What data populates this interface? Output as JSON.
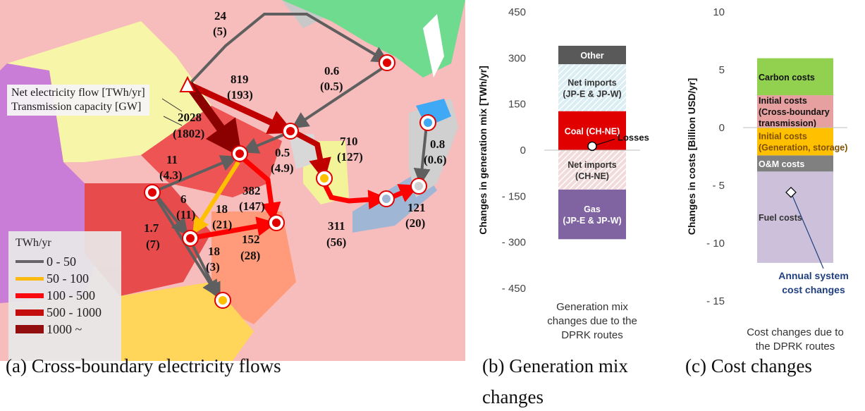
{
  "map": {
    "legend_title": "TWh/yr",
    "legend_items": [
      {
        "label": "0 - 50",
        "color": "#5f5f5f"
      },
      {
        "label": "50 - 100",
        "color": "#ffc000"
      },
      {
        "label": "100 - 500",
        "color": "#ff0000"
      },
      {
        "label": "500 - 1000",
        "color": "#c00000"
      },
      {
        "label": "1000 ~",
        "color": "#8b0000"
      }
    ],
    "note_line1": "Net electricity flow [TWh/yr]",
    "note_line2": "Transmission capacity [GW]",
    "flows": [
      {
        "flow": "24",
        "capacity": "(5)"
      },
      {
        "flow": "819",
        "capacity": "(193)"
      },
      {
        "flow": "0.6",
        "capacity": "(0.5)"
      },
      {
        "flow": "2028",
        "capacity": "(1802)"
      },
      {
        "flow": "710",
        "capacity": "(127)"
      },
      {
        "flow": "0.8",
        "capacity": "(0.6)"
      },
      {
        "flow": "11",
        "capacity": "(4.3)"
      },
      {
        "flow": "0.5",
        "capacity": "(4.9)"
      },
      {
        "flow": "6",
        "capacity": "(11)"
      },
      {
        "flow": "382",
        "capacity": "(147)"
      },
      {
        "flow": "18",
        "capacity": "(21)"
      },
      {
        "flow": "1.7",
        "capacity": "(7)"
      },
      {
        "flow": "152",
        "capacity": "(28)"
      },
      {
        "flow": "18",
        "capacity": "(3)"
      },
      {
        "flow": "311",
        "capacity": "(56)"
      },
      {
        "flow": "121",
        "capacity": "(20)"
      }
    ]
  },
  "captions": {
    "a": "(a) Cross-boundary electricity flows",
    "b_line1": "(b) Generation mix",
    "b_line2": "changes",
    "c": "(c) Cost changes"
  },
  "chart_data": [
    {
      "type": "bar",
      "stacked": true,
      "ylabel": "Changes in generation mix [TWh/yr]",
      "ylim": [
        -450,
        450
      ],
      "yticks": [
        "450",
        "300",
        "150",
        "0",
        "- 150",
        "- 300",
        "- 450"
      ],
      "ytick_values": [
        450,
        300,
        150,
        0,
        -150,
        -300,
        -450
      ],
      "category": "Generation mix changes due to the DPRK routes",
      "category_lines": [
        "Generation mix",
        "changes due to the",
        "DPRK routes"
      ],
      "segments": [
        {
          "name": "Gas (JP-E & JP-W)",
          "lines": [
            "Gas",
            "(JP-E & JP-W)"
          ],
          "from": -290,
          "to": -128,
          "color": "#8064a2",
          "text_color": "#ffffff"
        },
        {
          "name": "Net imports (CH-NE)",
          "lines": [
            "Net imports",
            "(CH-NE)"
          ],
          "from": -128,
          "to": 0,
          "color": "#f2dcdb",
          "hatch": true,
          "text_color": "#333333"
        },
        {
          "name": "Coal (CH-NE)",
          "lines": [
            "Coal (CH-NE)"
          ],
          "from": 0,
          "to": 127,
          "color": "#e00000",
          "text_color": "#ffffff"
        },
        {
          "name": "Net imports (JP-E & JP-W)",
          "lines": [
            "Net imports",
            "(JP-E & JP-W)"
          ],
          "from": 127,
          "to": 280,
          "color": "#daeef3",
          "hatch": true,
          "text_color": "#333333"
        },
        {
          "name": "Other",
          "lines": [
            "Other"
          ],
          "from": 280,
          "to": 340,
          "color": "#595959",
          "text_color": "#ffffff"
        }
      ],
      "marker": {
        "name": "Losses",
        "value": 13
      }
    },
    {
      "type": "bar",
      "stacked": true,
      "ylabel": "Changes in costs [Billion USD/yr]",
      "ylim": [
        -15,
        10
      ],
      "yticks": [
        "10",
        "5",
        "0",
        "- 5",
        "- 10",
        "- 15"
      ],
      "ytick_values": [
        10,
        5,
        0,
        -5,
        -10,
        -15
      ],
      "category": "Cost changes due to the DPRK routes",
      "category_lines": [
        "Cost changes due to",
        "the DPRK routes"
      ],
      "segments": [
        {
          "name": "Fuel costs",
          "lines": [
            "Fuel costs"
          ],
          "from": -11.7,
          "to": -3.8,
          "color": "#ccc0da",
          "text_color": "#333333"
        },
        {
          "name": "O&M costs",
          "lines": [
            "O&M costs"
          ],
          "from": -3.8,
          "to": -2.4,
          "color": "#808080",
          "text_color": "#ffffff"
        },
        {
          "name": "Initial costs (Generation, storage)",
          "lines": [
            "Initial costs",
            "(Generation, storage)"
          ],
          "from": -2.4,
          "to": 0,
          "color": "#ffc000",
          "text_color": "#7f4f00"
        },
        {
          "name": "Initial costs (Cross-boundary transmission)",
          "lines": [
            "Initial costs",
            "(Cross-boundary",
            "transmission)"
          ],
          "from": 0,
          "to": 2.8,
          "color": "#e6a0a0",
          "text_color": "#111111"
        },
        {
          "name": "Carbon costs",
          "lines": [
            "Carbon costs"
          ],
          "from": 2.8,
          "to": 6,
          "color": "#92d050",
          "text_color": "#111111"
        }
      ],
      "marker": {
        "name": "Annual system cost changes",
        "lines": [
          "Annual system",
          "cost changes"
        ],
        "value": -5.6,
        "color": "#1f3f7f"
      }
    }
  ]
}
